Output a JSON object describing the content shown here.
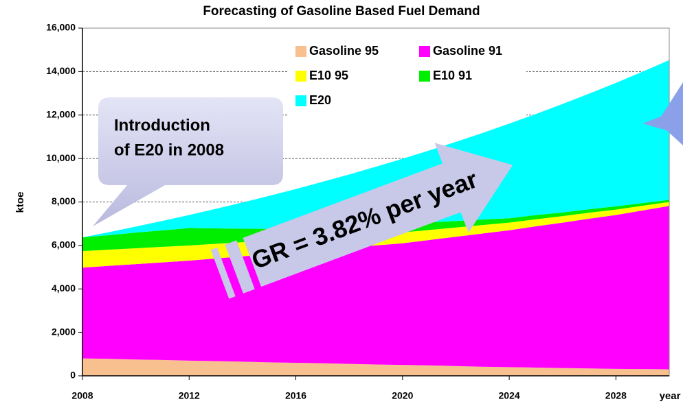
{
  "chart_data": {
    "type": "stacked_area",
    "title": "Forecasting of Gasoline Based Fuel Demand",
    "y_label": "ktoe",
    "x_label": "year",
    "x": [
      2008,
      2009,
      2010,
      2011,
      2012,
      2013,
      2014,
      2015,
      2016,
      2017,
      2018,
      2019,
      2020,
      2021,
      2022,
      2023,
      2024,
      2025,
      2026,
      2027,
      2028,
      2029,
      2030
    ],
    "xlim": [
      2008,
      2030
    ],
    "xticks": [
      2008,
      2012,
      2016,
      2020,
      2024,
      2028
    ],
    "ylim": [
      0,
      16000
    ],
    "yticks": [
      0,
      {
        "value": 2000,
        "label": "2,000"
      },
      {
        "value": 4000,
        "label": "4,000"
      },
      {
        "value": 6000,
        "label": "6,000"
      },
      {
        "value": 8000,
        "label": "8,000"
      },
      {
        "value": 10000,
        "label": "10,000"
      },
      {
        "value": 12000,
        "label": "12,000"
      },
      {
        "value": 14000,
        "label": "14,000"
      },
      {
        "value": 16000,
        "label": "16,000"
      }
    ],
    "grid": true,
    "legend": "top",
    "series": [
      {
        "name": "Gasoline 95",
        "color": "#f9c08f",
        "values": [
          800,
          780,
          750,
          730,
          700,
          680,
          650,
          620,
          600,
          580,
          550,
          520,
          500,
          480,
          450,
          420,
          400,
          380,
          360,
          340,
          320,
          310,
          300
        ]
      },
      {
        "name": "Gasoline 91",
        "color": "#ff00ff",
        "values": [
          4180,
          4280,
          4390,
          4490,
          4600,
          4720,
          4850,
          4980,
          5100,
          5220,
          5350,
          5480,
          5600,
          5770,
          5950,
          6130,
          6300,
          6500,
          6690,
          6890,
          7080,
          7300,
          7520
        ]
      },
      {
        "name": "E10 95",
        "color": "#ffff00",
        "values": [
          760,
          745,
          730,
          715,
          700,
          675,
          650,
          625,
          600,
          575,
          550,
          525,
          500,
          460,
          425,
          390,
          350,
          325,
          300,
          275,
          250,
          215,
          180
        ]
      },
      {
        "name": "E10 91",
        "color": "#00ee00",
        "values": [
          630,
          670,
          720,
          760,
          800,
          710,
          620,
          540,
          450,
          440,
          430,
          410,
          400,
          350,
          300,
          250,
          200,
          190,
          170,
          160,
          150,
          125,
          100
        ]
      },
      {
        "name": "E20",
        "color": "#00ffff",
        "values": [
          0,
          138,
          276,
          433,
          600,
          898,
          1206,
          1516,
          1847,
          2111,
          2387,
          2686,
          2988,
          3310,
          3641,
          3987,
          4354,
          4652,
          4987,
          5320,
          5681,
          6046,
          6430
        ]
      }
    ],
    "annotations": {
      "callout": [
        "Introduction",
        "of E20 in 2008"
      ],
      "arrow": "GR = 3.82% per year"
    }
  }
}
